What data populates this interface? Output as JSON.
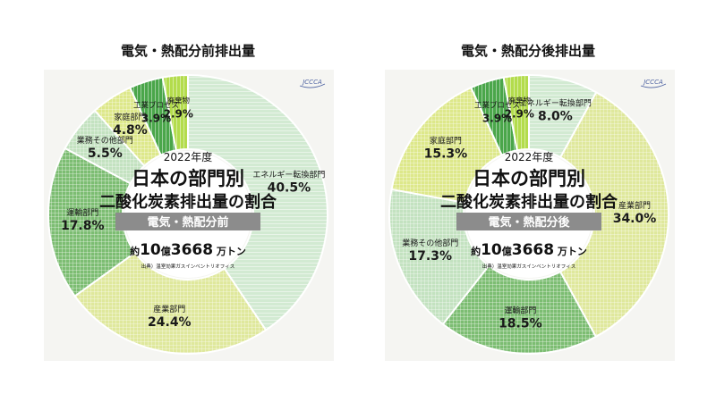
{
  "chart_data": [
    {
      "type": "pie",
      "title": "電気・熱配分前排出量",
      "center": {
        "year": "2022年度",
        "line1": "日本の部門別",
        "line2": "二酸化炭素排出量の割合",
        "badge": "電気・熱配分前",
        "total_prefix": "約",
        "total_num1": "10",
        "total_unit1": "億",
        "total_num2": "3668",
        "total_unit2": "万トン",
        "source": "出典）温室効果ガスインベントリオフィス"
      },
      "logo": "JCCCA",
      "slices": [
        {
          "label": "エネルギー転換部門",
          "value": 40.5,
          "value_text": "40.5%",
          "color": "#d2ead2",
          "pattern": "hstripe"
        },
        {
          "label": "産業部門",
          "value": 24.4,
          "value_text": "24.4%",
          "color": "#dfe89c",
          "pattern": "check"
        },
        {
          "label": "運輸部門",
          "value": 17.8,
          "value_text": "17.8%",
          "color": "#7cbd72",
          "pattern": "check"
        },
        {
          "label": "業務その他部門",
          "value": 5.5,
          "value_text": "5.5%",
          "color": "#c3e2c0",
          "pattern": "check"
        },
        {
          "label": "家庭部門",
          "value": 4.8,
          "value_text": "4.8%",
          "color": "#dde88a",
          "pattern": "check"
        },
        {
          "label": "工業プロセス",
          "value": 3.9,
          "value_text": "3.9%",
          "color": "#4aa64a",
          "pattern": "vstripe"
        },
        {
          "label": "廃棄物",
          "value": 2.9,
          "value_text": "2.9%",
          "color": "#b3dc4c",
          "pattern": "vstripe"
        }
      ]
    },
    {
      "type": "pie",
      "title": "電気・熱配分後排出量",
      "center": {
        "year": "2022年度",
        "line1": "日本の部門別",
        "line2": "二酸化炭素排出量の割合",
        "badge": "電気・熱配分後",
        "total_prefix": "約",
        "total_num1": "10",
        "total_unit1": "億",
        "total_num2": "3668",
        "total_unit2": "万トン",
        "source": "出典）温室効果ガスインベントリオフィス"
      },
      "logo": "JCCCA",
      "slices": [
        {
          "label": "エネルギー転換部門",
          "value": 8.0,
          "value_text": "8.0%",
          "color": "#d2ead2",
          "pattern": "hstripe"
        },
        {
          "label": "産業部門",
          "value": 34.0,
          "value_text": "34.0%",
          "color": "#dfe89c",
          "pattern": "check"
        },
        {
          "label": "運輸部門",
          "value": 18.5,
          "value_text": "18.5%",
          "color": "#7cbd72",
          "pattern": "check"
        },
        {
          "label": "業務その他部門",
          "value": 17.3,
          "value_text": "17.3%",
          "color": "#c3e2c0",
          "pattern": "check"
        },
        {
          "label": "家庭部門",
          "value": 15.3,
          "value_text": "15.3%",
          "color": "#dde88a",
          "pattern": "check"
        },
        {
          "label": "工業プロセス",
          "value": 3.9,
          "value_text": "3.9%",
          "color": "#4aa64a",
          "pattern": "vstripe"
        },
        {
          "label": "廃棄物",
          "value": 2.9,
          "value_text": "2.9%",
          "color": "#b3dc4c",
          "pattern": "vstripe"
        }
      ]
    }
  ],
  "colors": {
    "badge_bg": "#8c8c8c",
    "panel_bg": "#f5f5f2",
    "pattern_stroke": "#ffffff"
  }
}
